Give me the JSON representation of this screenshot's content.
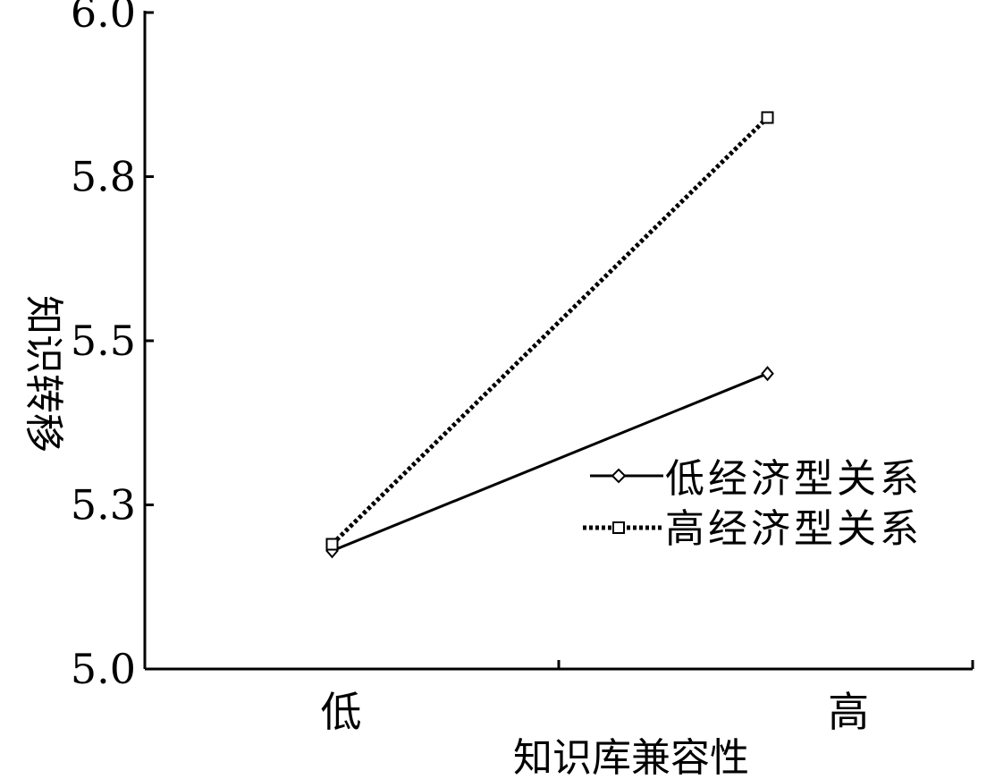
{
  "chart_data": {
    "type": "line",
    "xlabel": "知识库兼容性",
    "ylabel": "知识转移",
    "categories": [
      "低",
      "高"
    ],
    "ylim": [
      5.0,
      6.0
    ],
    "yticks": [
      "5.0",
      "5.3",
      "5.5",
      "5.8",
      "6.0"
    ],
    "ytick_values": [
      5.0,
      5.25,
      5.5,
      5.75,
      6.0
    ],
    "series": [
      {
        "name": "低经济型关系",
        "style": "solid",
        "marker": "diamond",
        "values": [
          5.18,
          5.45
        ]
      },
      {
        "name": "高经济型关系",
        "style": "dotted",
        "marker": "square",
        "values": [
          5.19,
          5.84
        ]
      }
    ],
    "x_positions": [
      0.25,
      0.75
    ],
    "legend_position": "right",
    "grid": false,
    "colors": {
      "line": "#000000",
      "background": "#ffffff"
    }
  }
}
